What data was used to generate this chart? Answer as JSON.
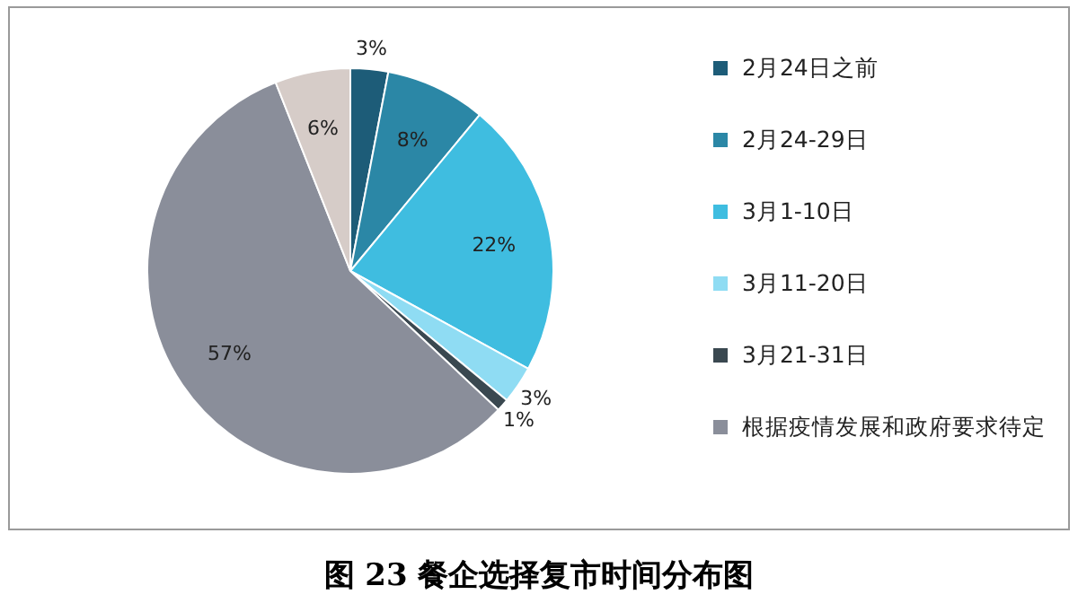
{
  "chart_data": {
    "type": "pie",
    "title": "图 23 餐企选择复市时间分布图",
    "categories": [
      "2月24日之前",
      "2月24-29日",
      "3月1-10日",
      "3月11-20日",
      "3月21-31日",
      "根据疫情发展和政府要求待定",
      null
    ],
    "values": [
      3,
      8,
      22,
      3,
      1,
      57,
      6
    ],
    "colors": [
      "#1d5c78",
      "#2b87a6",
      "#3fbde0",
      "#8fdcf3",
      "#3a4850",
      "#8a8e9a",
      "#d6ccc8"
    ],
    "value_labels": [
      "3%",
      "8%",
      "22%",
      "3%",
      "1%",
      "57%",
      "6%"
    ],
    "legend": "right"
  }
}
